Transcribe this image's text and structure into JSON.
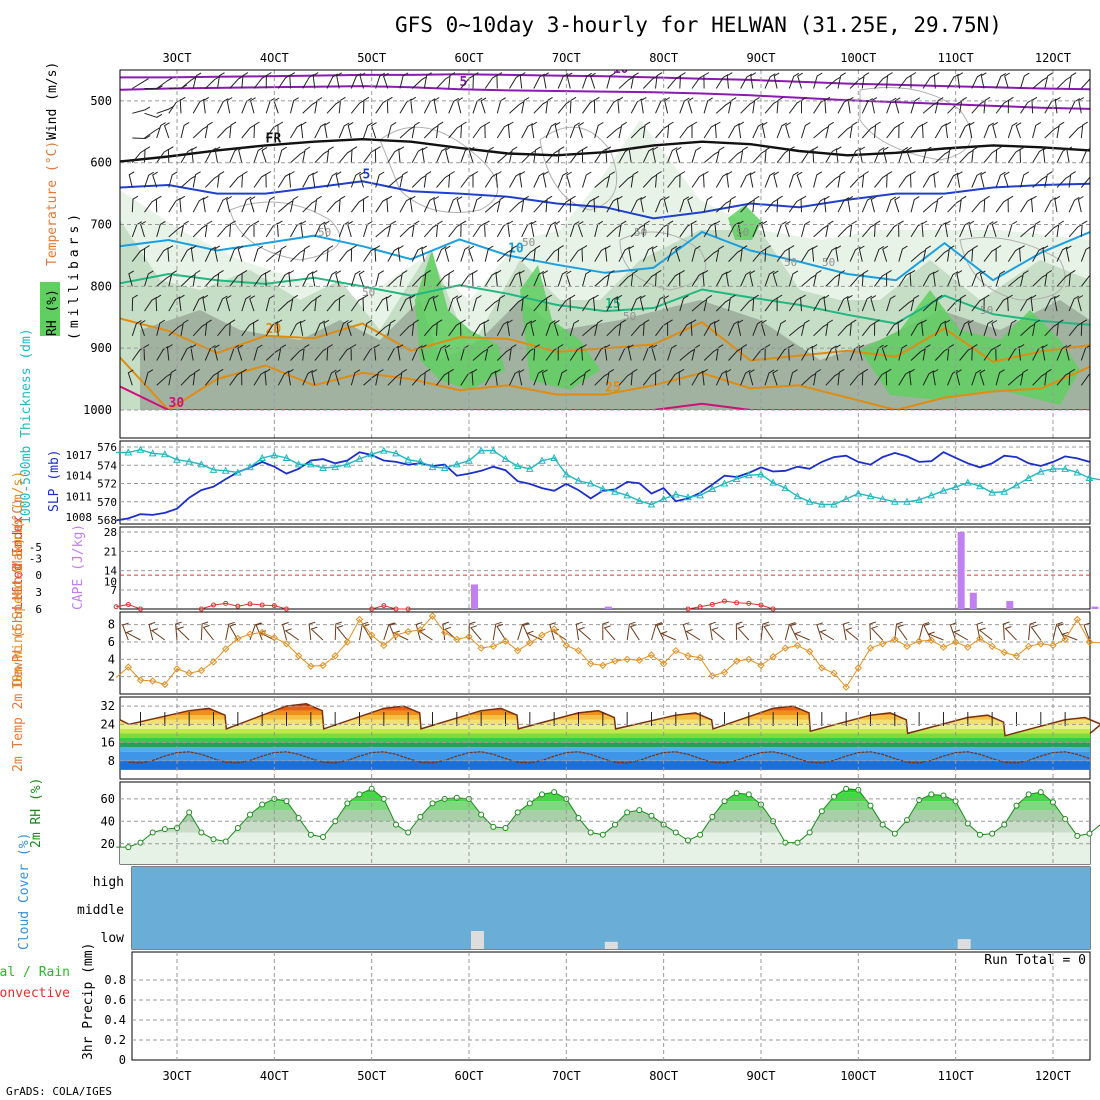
{
  "page": {
    "title": "GFS 0~10day 3-hourly for HELWAN (31.25E, 29.75N)",
    "credit": "GrADS: COLA/IGES"
  },
  "colors": {
    "rh_light": "#e3f1e3",
    "rh_mid": "#bfd8bf",
    "rh_gray": "#9aaa9a",
    "rh_green": "#5fcf5f",
    "temp_purple": "#8a1ab0",
    "temp_fr": "#111111",
    "temp_blue": "#1f3fd0",
    "temp_cyan": "#1aa0e0",
    "temp_teal": "#20b880",
    "temp_orange": "#e08c10",
    "temp_magenta": "#d0107a",
    "slp": "#1c2fc8",
    "thickness": "#22b8c0",
    "lifted_index": "#e03030",
    "cape": "#c080f0",
    "wind_speed": "#e09020",
    "wind_barb": "#6b3a1a",
    "temp_dew_line": "#7a3010",
    "rh2m_line": "#1a8a1a",
    "cloud": "#6aaed8",
    "low_cloud": "#dddddd",
    "run_total": "#000000"
  },
  "chart_data": [
    {
      "type": "contour",
      "name": "vertical-cross-section",
      "ylabel_parts": [
        "RH (%)",
        "Temperature (°C)",
        "Wind (m/s)"
      ],
      "ylabel_unit": "(millibars)",
      "y_ticks": [
        500,
        600,
        700,
        800,
        900,
        1000
      ],
      "ylim": [
        450,
        1000
      ],
      "x_tick_labels": [
        "3OCT",
        "4OCT",
        "5OCT",
        "6OCT",
        "7OCT",
        "8OCT",
        "9OCT",
        "10OCT",
        "11OCT",
        "12OCT"
      ],
      "rh_labels": [
        "50",
        "50",
        "50",
        "50",
        "50",
        "50",
        "50",
        "50",
        "50"
      ],
      "isotherms": [
        {
          "label": "-10",
          "level_mb": [
            462,
            462,
            461,
            460,
            459,
            458,
            458,
            457,
            458,
            459,
            460,
            462,
            464,
            466,
            469,
            472,
            474,
            476,
            478,
            480,
            481
          ]
        },
        {
          "label": "5",
          "level_mb": [
            482,
            480,
            479,
            478,
            477,
            476,
            478,
            481,
            483,
            484,
            485,
            486,
            488,
            491,
            495,
            499,
            502,
            505,
            508,
            511,
            513
          ]
        },
        {
          "label": "FR",
          "level_mb": [
            598,
            590,
            580,
            572,
            566,
            562,
            566,
            576,
            585,
            588,
            583,
            572,
            566,
            570,
            581,
            588,
            584,
            577,
            572,
            575,
            580
          ]
        },
        {
          "label": "5",
          "level_mb": [
            640,
            636,
            650,
            650,
            640,
            630,
            646,
            650,
            655,
            666,
            672,
            690,
            680,
            666,
            672,
            660,
            650,
            650,
            640,
            636,
            634
          ]
        },
        {
          "label": "10",
          "level_mb": [
            735,
            725,
            742,
            730,
            718,
            735,
            756,
            724,
            750,
            765,
            778,
            770,
            712,
            742,
            760,
            780,
            790,
            730,
            790,
            745,
            712
          ]
        },
        {
          "label": "15",
          "level_mb": [
            795,
            780,
            790,
            796,
            786,
            800,
            815,
            798,
            812,
            830,
            840,
            835,
            805,
            818,
            830,
            846,
            860,
            815,
            845,
            856,
            862
          ]
        },
        {
          "label": "20",
          "level_mb": [
            852,
            872,
            908,
            880,
            884,
            860,
            904,
            882,
            885,
            906,
            900,
            894,
            858,
            920,
            912,
            904,
            914,
            868,
            922,
            905,
            895
          ]
        },
        {
          "label": "25",
          "level_mb": [
            915,
            1000,
            950,
            928,
            960,
            940,
            950,
            968,
            960,
            975,
            975,
            960,
            940,
            965,
            960,
            980,
            1000,
            980,
            970,
            965,
            930
          ]
        },
        {
          "label": "30",
          "level_mb": [
            962,
            1000,
            1000,
            1000,
            1000,
            1000,
            1000,
            1000,
            1000,
            1000,
            1000,
            1000,
            990,
            1000,
            1000,
            1000,
            1000,
            1000,
            1000,
            1000,
            1000
          ]
        }
      ]
    },
    {
      "type": "line",
      "name": "thickness-slp",
      "ylabel_left": "1000-500mb Thickness (dm)",
      "ylabel_right": "SLP (mb)",
      "left_ticks": [
        568,
        570,
        572,
        574,
        576
      ],
      "right_ticks": [
        1008,
        1011,
        1014,
        1017
      ],
      "series": [
        {
          "name": "SLP (mb)",
          "values": [
            1007.5,
            1007.8,
            1008.4,
            1008.3,
            1008.6,
            1009.2,
            1010.8,
            1011.9,
            1012.4,
            1013.5,
            1014.5,
            1015.2,
            1016.0,
            1015.3,
            1014.3,
            1015.0,
            1016.2,
            1016.4,
            1015.8,
            1016.2,
            1017.4,
            1017.0,
            1016.2,
            1016.0,
            1015.6,
            1015.8,
            1015.4,
            1015.6,
            1014.0,
            1014.3,
            1014.7,
            1015.3,
            1014.8,
            1013.2,
            1012.8,
            1012.2,
            1011.8,
            1012.8,
            1011.9,
            1010.7,
            1011.8,
            1012.0,
            1013.1,
            1012.9,
            1011.4,
            1012.2,
            1010.3,
            1010.7,
            1011.5,
            1012.7,
            1014.0,
            1013.8,
            1014.4,
            1015.2,
            1014.6,
            1014.7,
            1015.3,
            1015.0,
            1016.0,
            1016.7,
            1016.9,
            1016.0,
            1015.6,
            1016.7,
            1017.3,
            1016.8,
            1016.0,
            1016.1,
            1017.4,
            1016.6,
            1015.8,
            1015.2,
            1015.8,
            1016.9,
            1016.7,
            1015.8,
            1015.4,
            1016.0,
            1016.8,
            1016.5,
            1016.0
          ]
        },
        {
          "name": "1000-500mb Thickness (dm)",
          "values": [
            575.4,
            575.4,
            575.7,
            575.3,
            575.2,
            574.6,
            574.4,
            574.1,
            573.5,
            573.4,
            573.2,
            573.8,
            574.8,
            575.1,
            574.8,
            574.1,
            574.1,
            573.7,
            573.8,
            574.1,
            574.7,
            575.2,
            575.6,
            575.3,
            574.6,
            574.4,
            573.8,
            573.7,
            574.1,
            574.5,
            575.6,
            575.6,
            574.7,
            573.9,
            573.6,
            574.5,
            574.8,
            573.0,
            572.3,
            572.0,
            571.4,
            571.1,
            570.7,
            570.1,
            569.7,
            570.3,
            570.8,
            570.5,
            570.7,
            571.4,
            572.0,
            572.5,
            572.9,
            573.0,
            572.1,
            571.5,
            570.6,
            570.0,
            569.7,
            569.7,
            570.3,
            570.9,
            570.6,
            570.3,
            570.0,
            570.0,
            570.2,
            570.7,
            571.2,
            571.6,
            572.1,
            571.7,
            571.0,
            571.1,
            571.8,
            572.6,
            573.3,
            573.6,
            573.6,
            573.2,
            572.6,
            572.4,
            572.4,
            571.9,
            571.5,
            571.2,
            570.9,
            570.9,
            571.1,
            571.4,
            571.8
          ]
        }
      ]
    },
    {
      "type": "bar",
      "name": "lifted-index-cape",
      "ylabel_left": "Lifted Index",
      "ylabel_right": "CAPE (J/kg)",
      "left_ticks": [
        -5,
        -3,
        0,
        3,
        6
      ],
      "right_ticks": [
        7,
        10,
        14,
        21,
        28
      ],
      "cape_bars": [
        {
          "step": 24,
          "value": 9
        },
        {
          "step": 35,
          "value": 1
        },
        {
          "step": 64,
          "value": 28
        },
        {
          "step": 65,
          "value": 6
        },
        {
          "step": 68,
          "value": 3
        },
        {
          "step": 75,
          "value": 1
        }
      ],
      "lifted_index_segments": [
        {
          "steps": [
            0,
            1,
            2
          ],
          "values": [
            5.6,
            5.2,
            6
          ]
        },
        {
          "steps": [
            7,
            8,
            9,
            10,
            11,
            12,
            13,
            14
          ],
          "values": [
            6,
            5.3,
            5.0,
            5.5,
            5.1,
            5.3,
            5.4,
            6
          ]
        },
        {
          "steps": [
            21,
            22,
            23,
            24
          ],
          "values": [
            6,
            5.4,
            6,
            6
          ]
        },
        {
          "steps": [
            47,
            48,
            49,
            50,
            51,
            52,
            53,
            54
          ],
          "values": [
            6,
            5.6,
            5.2,
            4.6,
            4.9,
            5.0,
            5.3,
            6
          ]
        }
      ]
    },
    {
      "type": "line",
      "name": "wind-10m",
      "ylabel": "10m Wind Speed & Barbs (m/s)",
      "y_ticks": [
        2,
        4,
        6,
        8
      ],
      "series": [
        {
          "name": "Speed (m/s)",
          "values": [
            1.9,
            3.1,
            1.6,
            1.5,
            1.1,
            2.9,
            2.4,
            2.7,
            3.7,
            5.2,
            6.4,
            6.9,
            7.1,
            6.5,
            5.8,
            4.4,
            3.2,
            3.3,
            4.4,
            6.0,
            8.6,
            6.8,
            5.6,
            6.8,
            7.2,
            7.4,
            9.0,
            7.1,
            6.3,
            6.6,
            5.3,
            5.5,
            6.1,
            5.0,
            5.9,
            6.8,
            7.5,
            5.6,
            5.0,
            3.5,
            3.3,
            3.8,
            4.0,
            3.9,
            4.5,
            3.5,
            5.0,
            4.4,
            4.2,
            2.1,
            2.5,
            3.8,
            4.0,
            3.3,
            4.3,
            5.3,
            5.6,
            4.9,
            3.0,
            2.4,
            0.8,
            3.0,
            5.3,
            5.8,
            6.3,
            5.5,
            6.1,
            6.2,
            5.4,
            6.0,
            5.4,
            6.4,
            5.5,
            4.8,
            4.4,
            5.5,
            5.8,
            5.6,
            6.3,
            8.6,
            6.0,
            5.9,
            6.8,
            5.2,
            4.7,
            7.1,
            6.0,
            9.2,
            7.1,
            6.1,
            5.5
          ]
        }
      ]
    },
    {
      "type": "area",
      "name": "temp-dewpoint-2m",
      "ylabel": "2m Temp 2m DewPt (6hr Min/Max) (°C)",
      "y_ticks": [
        8,
        16,
        24,
        32
      ],
      "temp_max_peaks": [
        31,
        33,
        32,
        31,
        30,
        29,
        32,
        29,
        28,
        27
      ],
      "temp_min_troughs": [
        24,
        22,
        22,
        22,
        22,
        22,
        22,
        21,
        20,
        19
      ],
      "dewpoint_range": [
        5,
        14
      ]
    },
    {
      "type": "area",
      "name": "rh-2m",
      "ylabel": "2m RH (%)",
      "y_ticks": [
        20,
        40,
        60
      ],
      "series": [
        {
          "name": "2m RH (%)",
          "values": [
            17,
            17,
            21,
            30,
            33,
            34,
            48,
            30,
            24,
            22,
            34,
            46,
            55,
            60,
            58,
            43,
            28,
            26,
            40,
            56,
            64,
            69,
            60,
            37,
            30,
            44,
            56,
            60,
            61,
            60,
            46,
            35,
            34,
            48,
            56,
            64,
            66,
            60,
            43,
            30,
            28,
            37,
            48,
            50,
            45,
            37,
            30,
            23,
            28,
            44,
            58,
            65,
            64,
            55,
            40,
            21,
            21,
            30,
            49,
            62,
            69,
            68,
            54,
            37,
            29,
            41,
            59,
            64,
            63,
            58,
            38,
            28,
            29,
            37,
            54,
            64,
            66,
            57,
            42,
            27,
            29,
            38,
            52,
            60,
            66,
            60
          ]
        }
      ]
    },
    {
      "type": "bar",
      "name": "cloud-cover",
      "ylabel": "Cloud Cover (%)",
      "categories": [
        "high",
        "middle",
        "low"
      ],
      "low_cloud_bars": [
        {
          "step": 24,
          "value": 100
        },
        {
          "step": 35,
          "value": 40
        },
        {
          "step": 64,
          "value": 55
        }
      ]
    },
    {
      "type": "bar",
      "name": "precip-3hr",
      "ylabel_parts": [
        "Total / Rain",
        "Convective",
        "3hr Precip (mm)"
      ],
      "y_ticks": [
        "0",
        "0.2",
        "0.4",
        "0.6",
        "0.8"
      ],
      "ylim": [
        0,
        1
      ],
      "run_total": "Run Total = 0",
      "values": []
    }
  ]
}
